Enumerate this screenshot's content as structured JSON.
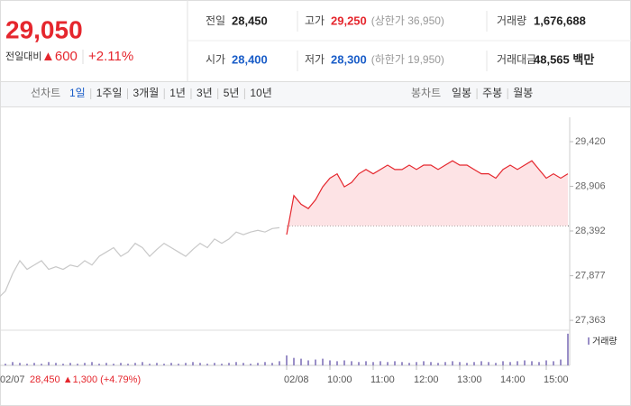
{
  "header": {
    "price": "29,050",
    "change_label": "전일대비",
    "change": "▲600",
    "change_pct": "+2.11%",
    "stats": [
      [
        {
          "label": "전일",
          "value": "28,450"
        },
        {
          "label": "고가",
          "value": "29,250",
          "extra": "(상한가 36,950)"
        },
        {
          "label": "거래량",
          "value": "1,676,688"
        }
      ],
      [
        {
          "label": "시가",
          "value": "28,400"
        },
        {
          "label": "저가",
          "value": "28,300",
          "extra": "(하한가 19,950)"
        },
        {
          "label": "거래대금",
          "value": "48,565 백만"
        }
      ]
    ]
  },
  "tabs": {
    "line_label": "선차트",
    "line": [
      "1일",
      "1주일",
      "3개월",
      "1년",
      "3년",
      "5년",
      "10년"
    ],
    "candle_label": "봉차트",
    "candle": [
      "일봉",
      "주봉",
      "월봉"
    ]
  },
  "chart_data": {
    "type": "line",
    "baseline": 28450,
    "annotation": "28,450 ▲1,300 (+4.79%)",
    "categories": [
      "02/07",
      null,
      null,
      null,
      null,
      null,
      null,
      null,
      null,
      null,
      null,
      null,
      null,
      null,
      null,
      null,
      null,
      null,
      null,
      null,
      null,
      null,
      null,
      null,
      null,
      null,
      null,
      null,
      null,
      null,
      null,
      null,
      null,
      null,
      null,
      null,
      null,
      null,
      null,
      null,
      "02/08",
      null,
      null,
      null,
      null,
      null,
      "10:00",
      null,
      null,
      null,
      null,
      null,
      "11:00",
      null,
      null,
      null,
      null,
      null,
      "12:00",
      null,
      null,
      null,
      null,
      null,
      "13:00",
      null,
      null,
      null,
      null,
      null,
      "14:00",
      null,
      null,
      null,
      null,
      null,
      "15:00",
      null,
      null,
      null
    ],
    "series": [
      {
        "color": "#c8c8c8",
        "values": [
          27620,
          27700,
          27900,
          28050,
          27950,
          28000,
          28050,
          27950,
          27980,
          27950,
          28000,
          27980,
          28050,
          28000,
          28100,
          28150,
          28200,
          28100,
          28150,
          28250,
          28200,
          28100,
          28180,
          28250,
          28200,
          28150,
          28100,
          28180,
          28250,
          28200,
          28300,
          28250,
          28300,
          28380,
          28350,
          28380,
          28400,
          28380,
          28420,
          28430,
          null,
          null,
          null,
          null,
          null,
          null,
          null,
          null,
          null,
          null,
          null,
          null,
          null,
          null,
          null,
          null,
          null,
          null,
          null,
          null,
          null,
          null,
          null,
          null,
          null,
          null,
          null,
          null,
          null,
          null,
          null,
          null,
          null,
          null,
          null,
          null,
          null,
          null,
          null,
          null
        ]
      },
      {
        "color": "#e5262d",
        "fill": "#fde3e5",
        "values": [
          null,
          null,
          null,
          null,
          null,
          null,
          null,
          null,
          null,
          null,
          null,
          null,
          null,
          null,
          null,
          null,
          null,
          null,
          null,
          null,
          null,
          null,
          null,
          null,
          null,
          null,
          null,
          null,
          null,
          null,
          null,
          null,
          null,
          null,
          null,
          null,
          null,
          null,
          null,
          null,
          28350,
          28800,
          28700,
          28650,
          28750,
          28900,
          29000,
          29050,
          28900,
          28950,
          29050,
          29100,
          29050,
          29100,
          29150,
          29100,
          29100,
          29150,
          29100,
          29150,
          29150,
          29100,
          29150,
          29200,
          29150,
          29150,
          29100,
          29050,
          29050,
          29000,
          29100,
          29150,
          29100,
          29150,
          29200,
          29100,
          29000,
          29050,
          29000,
          29050
        ]
      },
      {
        "name": "거래량",
        "axis": "y2",
        "color": "#9a8fc7",
        "values": [
          3,
          2,
          4,
          3,
          2,
          3,
          2,
          4,
          3,
          2,
          3,
          2,
          3,
          4,
          2,
          3,
          2,
          3,
          2,
          3,
          4,
          2,
          3,
          2,
          3,
          2,
          3,
          4,
          3,
          2,
          3,
          2,
          3,
          4,
          3,
          2,
          3,
          4,
          3,
          5,
          12,
          9,
          8,
          6,
          7,
          8,
          6,
          5,
          6,
          5,
          4,
          5,
          4,
          5,
          4,
          5,
          4,
          3,
          4,
          5,
          4,
          3,
          4,
          5,
          4,
          3,
          4,
          5,
          4,
          3,
          5,
          4,
          5,
          6,
          5,
          4,
          6,
          5,
          7,
          38
        ]
      }
    ],
    "ylim": [
      27260,
      29545
    ],
    "yticks": [
      {
        "value": 29420,
        "label": "29,420"
      },
      {
        "value": 28906,
        "label": "28,906"
      },
      {
        "value": 28392,
        "label": "28,392"
      },
      {
        "value": 27877,
        "label": "27,877"
      },
      {
        "value": 27363,
        "label": "27,363"
      }
    ],
    "y2lim": [
      0,
      40
    ]
  }
}
